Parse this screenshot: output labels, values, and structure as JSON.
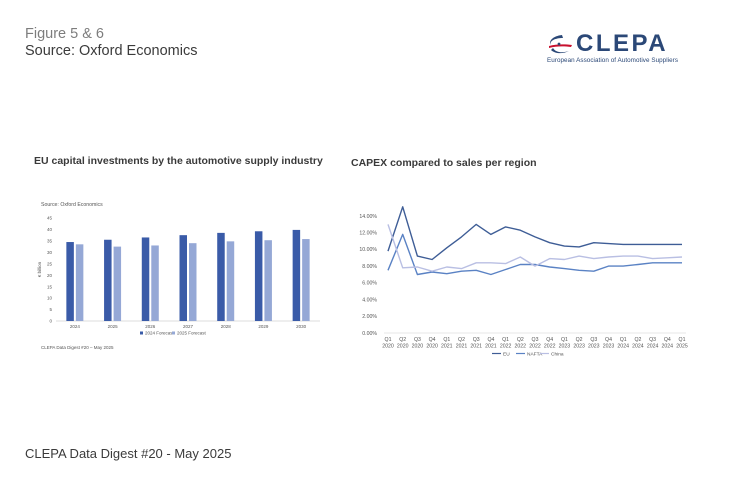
{
  "header": {
    "figure_label": "Figure 5 & 6",
    "source": "Source: Oxford Economics"
  },
  "logo": {
    "wordmark": "CLEPA",
    "tagline": "European Association of Automotive Suppliers",
    "icon": "clepa-swoosh-icon"
  },
  "footer": {
    "text": "CLEPA Data Digest #20 - May 2025"
  },
  "colors": {
    "dark_blue": "#3a5ba8",
    "light_blue": "#95a8d6",
    "lavender": "#c2b8dc"
  },
  "chart_data": [
    {
      "type": "bar",
      "title": "EU capital investments by the automotive supply industry",
      "source_note": "Source: Oxford Economics",
      "ylabel": "€ billion",
      "footnote": "CLEPA Data Digest #20 – May 2025",
      "categories": [
        "2024",
        "2025",
        "2026",
        "2027",
        "2028",
        "2029",
        "2030"
      ],
      "ylim": [
        0,
        45
      ],
      "yticks": [
        0,
        5,
        10,
        15,
        20,
        25,
        30,
        35,
        40,
        45
      ],
      "grid": false,
      "legend": "bottom",
      "series": [
        {
          "name": "2024 Forecast",
          "color": "#3a5ba8",
          "values": [
            34.5,
            35.5,
            36.5,
            37.5,
            38.5,
            39.2,
            39.8
          ]
        },
        {
          "name": "2025 Forecast",
          "color": "#95a8d6",
          "values": [
            33.5,
            32.5,
            33,
            34,
            34.8,
            35.3,
            35.8
          ]
        }
      ]
    },
    {
      "type": "line",
      "title": "CAPEX compared to sales per region",
      "x": [
        [
          "Q1",
          "2020"
        ],
        [
          "Q2",
          "2020"
        ],
        [
          "Q3",
          "2020"
        ],
        [
          "Q4",
          "2020"
        ],
        [
          "Q1",
          "2021"
        ],
        [
          "Q2",
          "2021"
        ],
        [
          "Q3",
          "2021"
        ],
        [
          "Q4",
          "2021"
        ],
        [
          "Q1",
          "2022"
        ],
        [
          "Q2",
          "2022"
        ],
        [
          "Q3",
          "2022"
        ],
        [
          "Q4",
          "2022"
        ],
        [
          "Q1",
          "2023"
        ],
        [
          "Q2",
          "2023"
        ],
        [
          "Q3",
          "2023"
        ],
        [
          "Q4",
          "2023"
        ],
        [
          "Q1",
          "2024"
        ],
        [
          "Q2",
          "2024"
        ],
        [
          "Q3",
          "2024"
        ],
        [
          "Q4",
          "2024"
        ],
        [
          "Q1",
          "2025"
        ]
      ],
      "ylim": [
        0,
        14
      ],
      "yticks": [
        0,
        2,
        4,
        6,
        8,
        10,
        12,
        14
      ],
      "ytick_labels": [
        "0.00%",
        "2.00%",
        "4.00%",
        "6.00%",
        "8.00%",
        "10.00%",
        "12.00%",
        "14.00%"
      ],
      "grid": false,
      "legend": "bottom",
      "series": [
        {
          "name": "EU",
          "color": "#3e5d96",
          "values": [
            9.8,
            15.1,
            9.2,
            8.8,
            10.2,
            11.5,
            13.0,
            11.8,
            12.7,
            12.3,
            11.5,
            10.8,
            10.4,
            10.3,
            10.8,
            10.7,
            10.6,
            10.6,
            10.6,
            10.6,
            10.6
          ]
        },
        {
          "name": "NAFTA",
          "color": "#5a82c4",
          "values": [
            7.5,
            11.8,
            7.0,
            7.3,
            7.1,
            7.4,
            7.5,
            7.0,
            7.6,
            8.2,
            8.2,
            7.9,
            7.7,
            7.5,
            7.4,
            8.0,
            8.0,
            8.2,
            8.4,
            8.4,
            8.4
          ]
        },
        {
          "name": "China",
          "color": "#b9bfe3",
          "values": [
            13.0,
            7.8,
            7.9,
            7.4,
            7.9,
            7.7,
            8.4,
            8.4,
            8.3,
            9.1,
            8.0,
            8.9,
            8.8,
            9.2,
            8.9,
            9.1,
            9.2,
            9.2,
            8.9,
            9.0,
            9.1
          ]
        }
      ]
    }
  ]
}
